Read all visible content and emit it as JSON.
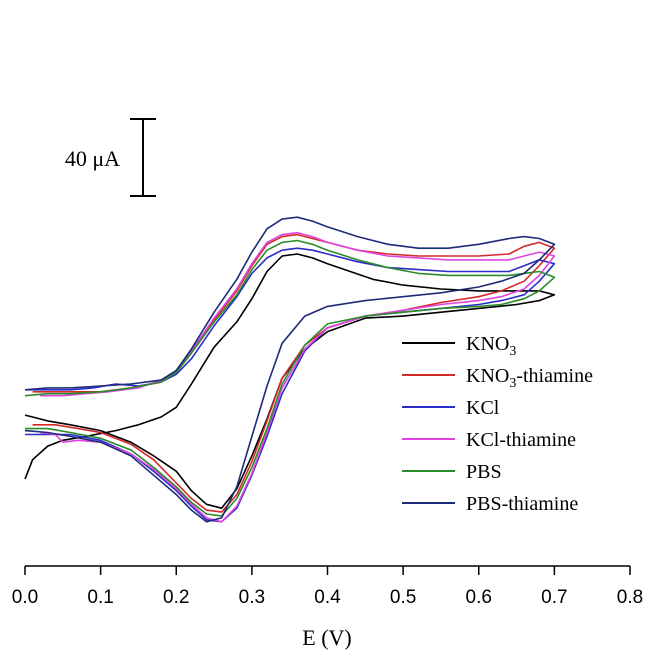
{
  "chart_data": {
    "type": "line",
    "title": "",
    "xlabel": "E (V)",
    "ylabel": "",
    "xlim": [
      0.0,
      0.8
    ],
    "x_ticks": [
      "0.0",
      "0.1",
      "0.2",
      "0.3",
      "0.4",
      "0.5",
      "0.6",
      "0.7",
      "0.8"
    ],
    "y_axis_visible": false,
    "scale_bar": {
      "label": "40 μA",
      "value_uA": 40
    },
    "grid": false,
    "legend_position": "right",
    "series": [
      {
        "name": "KNO3",
        "label_main": "KNO",
        "label_sub": "3",
        "label_rest": "",
        "color": "#000000",
        "forward": [
          [
            0.0,
            -82
          ],
          [
            0.01,
            -72
          ],
          [
            0.03,
            -65
          ],
          [
            0.05,
            -62
          ],
          [
            0.08,
            -60
          ],
          [
            0.12,
            -57
          ],
          [
            0.15,
            -54
          ],
          [
            0.18,
            -50
          ],
          [
            0.2,
            -45
          ],
          [
            0.22,
            -33
          ],
          [
            0.25,
            -14
          ],
          [
            0.28,
            -1
          ],
          [
            0.3,
            11
          ],
          [
            0.32,
            25
          ],
          [
            0.34,
            33
          ],
          [
            0.36,
            34
          ],
          [
            0.38,
            32
          ],
          [
            0.4,
            29
          ],
          [
            0.43,
            25
          ],
          [
            0.46,
            21
          ],
          [
            0.5,
            18
          ],
          [
            0.55,
            16
          ],
          [
            0.6,
            15
          ],
          [
            0.65,
            15
          ],
          [
            0.68,
            15
          ],
          [
            0.7,
            13
          ]
        ],
        "reverse": [
          [
            0.7,
            13
          ],
          [
            0.68,
            10
          ],
          [
            0.65,
            8
          ],
          [
            0.6,
            6
          ],
          [
            0.55,
            4
          ],
          [
            0.5,
            2
          ],
          [
            0.45,
            1
          ],
          [
            0.4,
            -6
          ],
          [
            0.37,
            -15
          ],
          [
            0.34,
            -30
          ],
          [
            0.32,
            -51
          ],
          [
            0.3,
            -70
          ],
          [
            0.28,
            -87
          ],
          [
            0.26,
            -97
          ],
          [
            0.24,
            -95
          ],
          [
            0.22,
            -88
          ],
          [
            0.2,
            -78
          ],
          [
            0.17,
            -70
          ],
          [
            0.14,
            -63
          ],
          [
            0.1,
            -57
          ],
          [
            0.06,
            -54
          ],
          [
            0.03,
            -52
          ],
          [
            0.01,
            -50
          ],
          [
            0.0,
            -49
          ]
        ]
      },
      {
        "name": "KNO3-thiamine",
        "label_main": "KNO",
        "label_sub": "3",
        "label_rest": "-thiamine",
        "color": "#d42a2a",
        "forward": [
          [
            0.01,
            -37
          ],
          [
            0.03,
            -37
          ],
          [
            0.06,
            -37
          ],
          [
            0.1,
            -37
          ],
          [
            0.14,
            -35
          ],
          [
            0.18,
            -32
          ],
          [
            0.2,
            -27
          ],
          [
            0.22,
            -17
          ],
          [
            0.25,
            0
          ],
          [
            0.28,
            15
          ],
          [
            0.3,
            28
          ],
          [
            0.32,
            39
          ],
          [
            0.34,
            43
          ],
          [
            0.36,
            44
          ],
          [
            0.38,
            42
          ],
          [
            0.4,
            40
          ],
          [
            0.44,
            36
          ],
          [
            0.48,
            34
          ],
          [
            0.52,
            33
          ],
          [
            0.56,
            33
          ],
          [
            0.6,
            33
          ],
          [
            0.64,
            34
          ],
          [
            0.66,
            38
          ],
          [
            0.68,
            40
          ],
          [
            0.7,
            37
          ]
        ],
        "reverse": [
          [
            0.7,
            37
          ],
          [
            0.68,
            28
          ],
          [
            0.66,
            20
          ],
          [
            0.63,
            15
          ],
          [
            0.6,
            12
          ],
          [
            0.55,
            9
          ],
          [
            0.5,
            5
          ],
          [
            0.45,
            2
          ],
          [
            0.4,
            -4
          ],
          [
            0.37,
            -13
          ],
          [
            0.34,
            -30
          ],
          [
            0.32,
            -52
          ],
          [
            0.3,
            -73
          ],
          [
            0.28,
            -90
          ],
          [
            0.26,
            -99
          ],
          [
            0.24,
            -98
          ],
          [
            0.22,
            -92
          ],
          [
            0.2,
            -84
          ],
          [
            0.17,
            -72
          ],
          [
            0.14,
            -64
          ],
          [
            0.1,
            -58
          ],
          [
            0.07,
            -56
          ],
          [
            0.04,
            -54
          ],
          [
            0.01,
            -54
          ]
        ]
      },
      {
        "name": "KCl",
        "label_main": "KCl",
        "label_sub": "",
        "label_rest": "",
        "color": "#2c2cc8",
        "forward": [
          [
            0.0,
            -36
          ],
          [
            0.03,
            -36
          ],
          [
            0.06,
            -36
          ],
          [
            0.09,
            -35
          ],
          [
            0.12,
            -33
          ],
          [
            0.15,
            -34
          ],
          [
            0.18,
            -32
          ],
          [
            0.2,
            -28
          ],
          [
            0.22,
            -20
          ],
          [
            0.25,
            -3
          ],
          [
            0.28,
            12
          ],
          [
            0.3,
            24
          ],
          [
            0.32,
            32
          ],
          [
            0.34,
            36
          ],
          [
            0.36,
            37
          ],
          [
            0.38,
            36
          ],
          [
            0.4,
            34
          ],
          [
            0.44,
            30
          ],
          [
            0.48,
            27
          ],
          [
            0.52,
            26
          ],
          [
            0.56,
            25
          ],
          [
            0.6,
            25
          ],
          [
            0.64,
            25
          ],
          [
            0.66,
            28
          ],
          [
            0.68,
            31
          ],
          [
            0.7,
            29
          ]
        ],
        "reverse": [
          [
            0.7,
            29
          ],
          [
            0.68,
            20
          ],
          [
            0.66,
            13
          ],
          [
            0.63,
            10
          ],
          [
            0.6,
            8
          ],
          [
            0.55,
            6
          ],
          [
            0.5,
            4
          ],
          [
            0.45,
            2
          ],
          [
            0.4,
            -4
          ],
          [
            0.37,
            -16
          ],
          [
            0.34,
            -38
          ],
          [
            0.32,
            -60
          ],
          [
            0.3,
            -80
          ],
          [
            0.28,
            -97
          ],
          [
            0.26,
            -104
          ],
          [
            0.24,
            -103
          ],
          [
            0.22,
            -96
          ],
          [
            0.2,
            -88
          ],
          [
            0.17,
            -78
          ],
          [
            0.14,
            -69
          ],
          [
            0.1,
            -62
          ],
          [
            0.06,
            -59
          ],
          [
            0.03,
            -59
          ],
          [
            0.0,
            -59
          ]
        ]
      },
      {
        "name": "KCl-thiamine",
        "label_main": "KCl-thiamine",
        "label_sub": "",
        "label_rest": "",
        "color": "#e044e0",
        "forward": [
          [
            0.02,
            -39
          ],
          [
            0.05,
            -39
          ],
          [
            0.08,
            -38
          ],
          [
            0.11,
            -37
          ],
          [
            0.15,
            -35
          ],
          [
            0.18,
            -31
          ],
          [
            0.2,
            -27
          ],
          [
            0.22,
            -16
          ],
          [
            0.25,
            1
          ],
          [
            0.28,
            16
          ],
          [
            0.3,
            29
          ],
          [
            0.32,
            40
          ],
          [
            0.34,
            44
          ],
          [
            0.36,
            45
          ],
          [
            0.38,
            43
          ],
          [
            0.4,
            40
          ],
          [
            0.44,
            36
          ],
          [
            0.48,
            33
          ],
          [
            0.52,
            32
          ],
          [
            0.56,
            31
          ],
          [
            0.6,
            31
          ],
          [
            0.64,
            31
          ],
          [
            0.66,
            33
          ],
          [
            0.68,
            35
          ],
          [
            0.7,
            33
          ]
        ],
        "reverse": [
          [
            0.7,
            33
          ],
          [
            0.68,
            23
          ],
          [
            0.66,
            16
          ],
          [
            0.63,
            12
          ],
          [
            0.6,
            10
          ],
          [
            0.55,
            8
          ],
          [
            0.5,
            5
          ],
          [
            0.45,
            2
          ],
          [
            0.4,
            -4
          ],
          [
            0.37,
            -15
          ],
          [
            0.34,
            -35
          ],
          [
            0.32,
            -58
          ],
          [
            0.3,
            -79
          ],
          [
            0.28,
            -96
          ],
          [
            0.26,
            -104
          ],
          [
            0.24,
            -102
          ],
          [
            0.22,
            -95
          ],
          [
            0.2,
            -87
          ],
          [
            0.17,
            -77
          ],
          [
            0.14,
            -69
          ],
          [
            0.1,
            -63
          ],
          [
            0.07,
            -62
          ],
          [
            0.05,
            -63
          ],
          [
            0.04,
            -59
          ],
          [
            0.02,
            -58
          ]
        ]
      },
      {
        "name": "PBS",
        "label_main": "PBS",
        "label_sub": "",
        "label_rest": "",
        "color": "#2a8c2a",
        "forward": [
          [
            0.0,
            -39
          ],
          [
            0.03,
            -38
          ],
          [
            0.06,
            -38
          ],
          [
            0.1,
            -37
          ],
          [
            0.14,
            -35
          ],
          [
            0.18,
            -32
          ],
          [
            0.2,
            -27
          ],
          [
            0.22,
            -17
          ],
          [
            0.25,
            -1
          ],
          [
            0.28,
            13
          ],
          [
            0.3,
            26
          ],
          [
            0.32,
            36
          ],
          [
            0.34,
            40
          ],
          [
            0.36,
            41
          ],
          [
            0.38,
            39
          ],
          [
            0.4,
            36
          ],
          [
            0.44,
            31
          ],
          [
            0.48,
            27
          ],
          [
            0.52,
            24
          ],
          [
            0.56,
            23
          ],
          [
            0.6,
            23
          ],
          [
            0.64,
            23
          ],
          [
            0.66,
            24
          ],
          [
            0.68,
            25
          ],
          [
            0.7,
            22
          ]
        ],
        "reverse": [
          [
            0.7,
            22
          ],
          [
            0.68,
            15
          ],
          [
            0.66,
            11
          ],
          [
            0.63,
            8
          ],
          [
            0.6,
            7
          ],
          [
            0.55,
            6
          ],
          [
            0.5,
            4
          ],
          [
            0.45,
            2
          ],
          [
            0.4,
            -2
          ],
          [
            0.37,
            -13
          ],
          [
            0.34,
            -33
          ],
          [
            0.32,
            -56
          ],
          [
            0.3,
            -76
          ],
          [
            0.28,
            -92
          ],
          [
            0.26,
            -101
          ],
          [
            0.24,
            -100
          ],
          [
            0.22,
            -94
          ],
          [
            0.2,
            -86
          ],
          [
            0.17,
            -76
          ],
          [
            0.14,
            -67
          ],
          [
            0.1,
            -61
          ],
          [
            0.06,
            -58
          ],
          [
            0.03,
            -56
          ],
          [
            0.0,
            -56
          ]
        ]
      },
      {
        "name": "PBS-thiamine",
        "label_main": "PBS-thiamine",
        "label_sub": "",
        "label_rest": "",
        "color": "#1e2a7a",
        "forward": [
          [
            0.0,
            -36
          ],
          [
            0.03,
            -35
          ],
          [
            0.06,
            -35
          ],
          [
            0.1,
            -34
          ],
          [
            0.14,
            -33
          ],
          [
            0.18,
            -31
          ],
          [
            0.2,
            -26
          ],
          [
            0.22,
            -15
          ],
          [
            0.25,
            4
          ],
          [
            0.28,
            21
          ],
          [
            0.3,
            35
          ],
          [
            0.32,
            47
          ],
          [
            0.34,
            52
          ],
          [
            0.36,
            53
          ],
          [
            0.38,
            51
          ],
          [
            0.4,
            48
          ],
          [
            0.44,
            43
          ],
          [
            0.48,
            39
          ],
          [
            0.52,
            37
          ],
          [
            0.56,
            37
          ],
          [
            0.6,
            39
          ],
          [
            0.64,
            42
          ],
          [
            0.66,
            43
          ],
          [
            0.68,
            42
          ],
          [
            0.7,
            39
          ]
        ],
        "reverse": [
          [
            0.7,
            39
          ],
          [
            0.68,
            31
          ],
          [
            0.66,
            24
          ],
          [
            0.63,
            20
          ],
          [
            0.6,
            17
          ],
          [
            0.55,
            14
          ],
          [
            0.5,
            12
          ],
          [
            0.45,
            10
          ],
          [
            0.4,
            7
          ],
          [
            0.37,
            2
          ],
          [
            0.34,
            -12
          ],
          [
            0.32,
            -34
          ],
          [
            0.3,
            -60
          ],
          [
            0.28,
            -86
          ],
          [
            0.26,
            -102
          ],
          [
            0.24,
            -104
          ],
          [
            0.22,
            -98
          ],
          [
            0.2,
            -90
          ],
          [
            0.17,
            -80
          ],
          [
            0.14,
            -70
          ],
          [
            0.1,
            -63
          ],
          [
            0.06,
            -60
          ],
          [
            0.03,
            -58
          ],
          [
            0.0,
            -57
          ]
        ]
      }
    ]
  }
}
